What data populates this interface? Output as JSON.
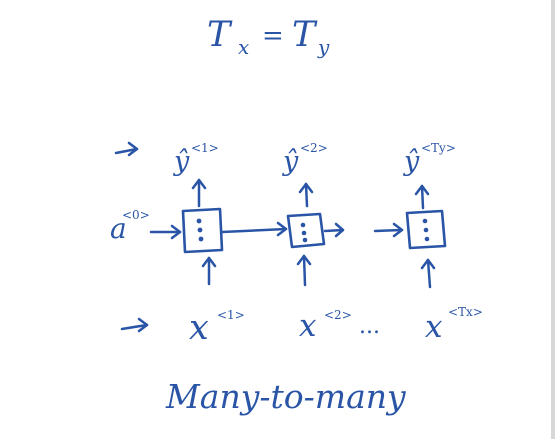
{
  "diagram": {
    "equation": {
      "left": "T",
      "left_sub": "x",
      "equals": "=",
      "right": "T",
      "right_sub": "y"
    },
    "initial_activation": {
      "base": "a",
      "sup": "<0>"
    },
    "outputs": [
      {
        "base": "ŷ",
        "sup": "<1>"
      },
      {
        "base": "ŷ",
        "sup": "<2>"
      },
      {
        "base": "ŷ",
        "sup": "<Ty>"
      }
    ],
    "inputs": [
      {
        "base": "x",
        "sup": "<1>"
      },
      {
        "base": "x",
        "sup": "<2>"
      },
      {
        "base": "x",
        "sup": "<Tx>"
      }
    ],
    "ellipsis": "...",
    "caption": "Many-to-many",
    "colors": {
      "ink": "#2a55a6",
      "background": "#ffffff"
    }
  }
}
